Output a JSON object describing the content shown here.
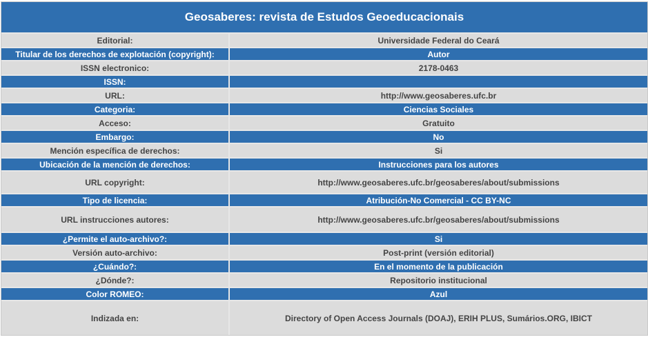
{
  "title": "Geosaberes: revista de Estudos Geoeducacionais",
  "rows": [
    {
      "label": "Editorial:",
      "value": "Universidade Federal do Ceará"
    },
    {
      "label": "Titular de los derechos de explotación (copyright):",
      "value": "Autor"
    },
    {
      "label": "ISSN electronico:",
      "value": "2178-0463"
    },
    {
      "label": "ISSN:",
      "value": ""
    },
    {
      "label": "URL:",
      "value": "http://www.geosaberes.ufc.br"
    },
    {
      "label": "Categoria:",
      "value": "Ciencias Sociales"
    },
    {
      "label": "Acceso:",
      "value": "Gratuito"
    },
    {
      "label": "Embargo:",
      "value": "No"
    },
    {
      "label": "Mención específica de derechos:",
      "value": "Si"
    },
    {
      "label": "Ubicación de la mención de derechos:",
      "value": "Instrucciones para los autores"
    },
    {
      "label": "URL copyright:",
      "value": "http://www.geosaberes.ufc.br/geosaberes/about/submissions"
    },
    {
      "label": "Tipo de licencia:",
      "value": "Atribución-No Comercial - CC BY-NC"
    },
    {
      "label": "URL instrucciones autores:",
      "value": "http://www.geosaberes.ufc.br/geosaberes/about/submissions"
    },
    {
      "label": "¿Permite el auto-archivo?:",
      "value": "Si"
    },
    {
      "label": "Versión auto-archivo:",
      "value": "Post-print (versión editorial)"
    },
    {
      "label": "¿Cuándo?:",
      "value": "En el momento de la publicación"
    },
    {
      "label": "¿Dónde?:",
      "value": "Repositorio institucional"
    },
    {
      "label": "Color ROMEO:",
      "value": "Azul"
    },
    {
      "label": "Indizada en:",
      "value": "Directory of Open Access Journals (DOAJ), ERIH PLUS, Sumários.ORG, IBICT"
    }
  ],
  "colors": {
    "header_blue": "#2f6fb0",
    "row_gray": "#dcdcdc",
    "text_dark": "#444444"
  }
}
